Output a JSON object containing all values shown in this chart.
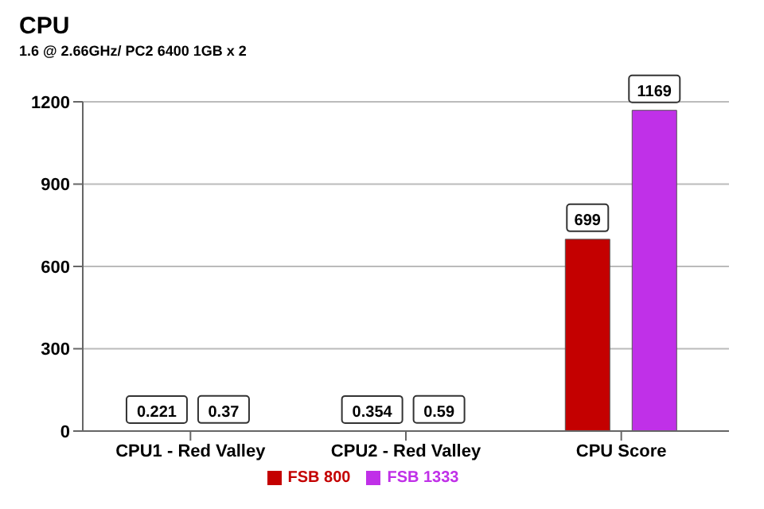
{
  "chart_data": {
    "type": "bar",
    "title": "CPU",
    "subtitle": "1.6 @ 2.66GHz/ PC2 6400 1GB x 2",
    "categories": [
      "CPU1 - Red Valley",
      "CPU2 - Red Valley",
      "CPU Score"
    ],
    "series": [
      {
        "name": "FSB 800",
        "color": "#c40000",
        "values": [
          0.221,
          0.354,
          699
        ]
      },
      {
        "name": "FSB 1333",
        "color": "#c030e8",
        "values": [
          0.37,
          0.59,
          1169
        ]
      }
    ],
    "ylim": [
      0,
      1200
    ],
    "yticks": [
      0,
      300,
      600,
      900,
      1200
    ],
    "grid": "y",
    "legend": "bottom",
    "data_labels": true
  }
}
